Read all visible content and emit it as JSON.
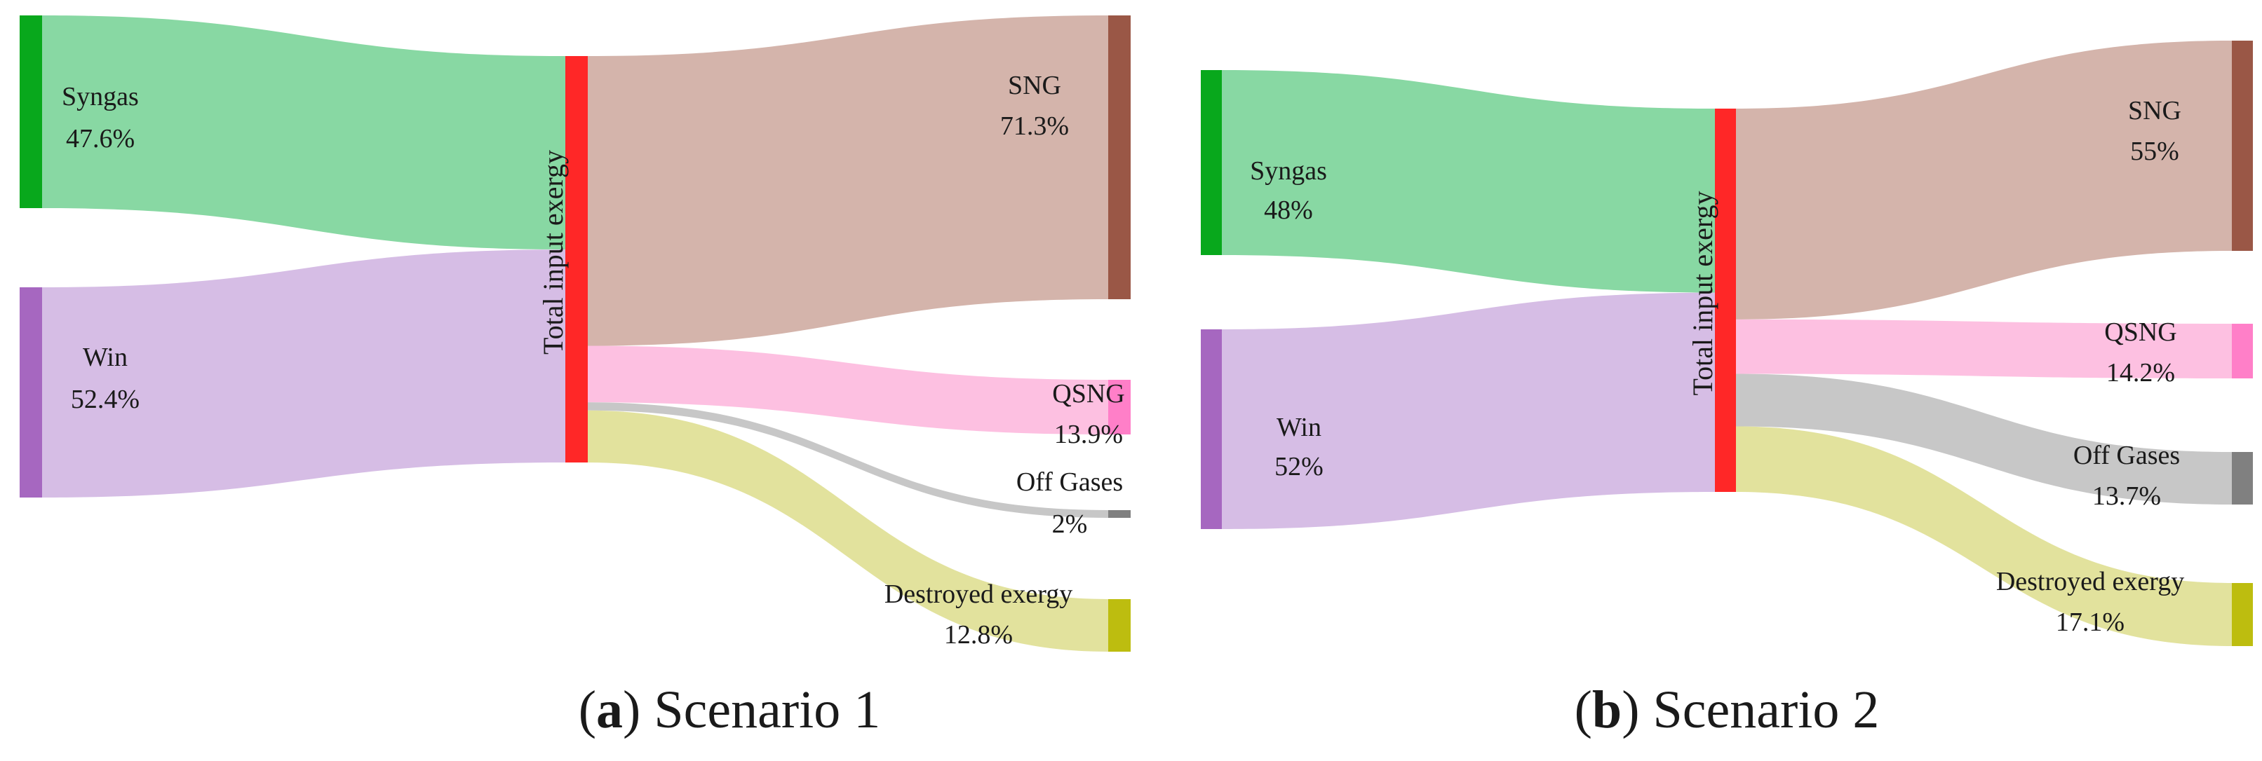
{
  "diagrams": [
    {
      "caption": {
        "letter": "a",
        "text": "Scenario 1"
      },
      "center_label": "Total input exergy",
      "inputs": [
        {
          "name": "Syngas",
          "value_label": "47.6%",
          "value": 47.6,
          "bar_color": "#08a81c",
          "flow_color": "#88d8a3"
        },
        {
          "name": "Win",
          "value_label": "52.4%",
          "value": 52.4,
          "bar_color": "#a667c0",
          "flow_color": "#d6bde5"
        }
      ],
      "outputs": [
        {
          "name": "SNG",
          "value_label": "71.3%",
          "value": 71.3,
          "bar_color": "#9a5746",
          "flow_color": "#d4b4ab"
        },
        {
          "name": "QSNG",
          "value_label": "13.9%",
          "value": 13.9,
          "bar_color": "#ff7fc8",
          "flow_color": "#fdc0e1"
        },
        {
          "name": "Off Gases",
          "value_label": "2%",
          "value": 2.0,
          "bar_color": "#808080",
          "flow_color": "#c7c7c7"
        },
        {
          "name": "Destroyed exergy",
          "value_label": "12.8%",
          "value": 12.8,
          "bar_color": "#bdbd0f",
          "flow_color": "#e2e29d"
        }
      ]
    },
    {
      "caption": {
        "letter": "b",
        "text": "Scenario 2"
      },
      "center_label": "Total input exergy",
      "inputs": [
        {
          "name": "Syngas",
          "value_label": "48%",
          "value": 48.0,
          "bar_color": "#08a81c",
          "flow_color": "#88d8a3"
        },
        {
          "name": "Win",
          "value_label": "52%",
          "value": 52.0,
          "bar_color": "#a667c0",
          "flow_color": "#d6bde5"
        }
      ],
      "outputs": [
        {
          "name": "SNG",
          "value_label": "55%",
          "value": 55.0,
          "bar_color": "#9a5746",
          "flow_color": "#d4b4ab"
        },
        {
          "name": "QSNG",
          "value_label": "14.2%",
          "value": 14.2,
          "bar_color": "#ff7fc8",
          "flow_color": "#fdc0e1"
        },
        {
          "name": "Off Gases",
          "value_label": "13.7%",
          "value": 13.7,
          "bar_color": "#808080",
          "flow_color": "#c7c7c7"
        },
        {
          "name": "Destroyed exergy",
          "value_label": "17.1%",
          "value": 17.1,
          "bar_color": "#bdbd0f",
          "flow_color": "#e2e29d"
        }
      ]
    }
  ],
  "center_bar_color": "#ff2727"
}
